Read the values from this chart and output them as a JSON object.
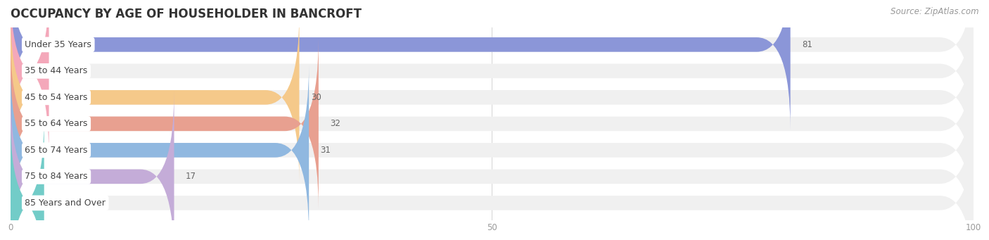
{
  "title": "OCCUPANCY BY AGE OF HOUSEHOLDER IN BANCROFT",
  "source": "Source: ZipAtlas.com",
  "categories": [
    "Under 35 Years",
    "35 to 44 Years",
    "45 to 54 Years",
    "55 to 64 Years",
    "65 to 74 Years",
    "75 to 84 Years",
    "85 Years and Over"
  ],
  "values": [
    81,
    4,
    30,
    32,
    31,
    17,
    0
  ],
  "bar_colors": [
    "#8b96d8",
    "#f4a8ba",
    "#f5c98a",
    "#e8a090",
    "#90b8e0",
    "#c4acd8",
    "#72ccc8"
  ],
  "bar_bg_color": "#f0f0f0",
  "xlim": [
    0,
    100
  ],
  "xticks": [
    0,
    50,
    100
  ],
  "title_fontsize": 12,
  "label_fontsize": 9,
  "value_fontsize": 8.5,
  "source_fontsize": 8.5,
  "bg_color": "#ffffff",
  "grid_color": "#d8d8d8",
  "bar_height": 0.55,
  "label_text_color": "#444444",
  "value_text_color": "#666666",
  "title_color": "#333333",
  "tick_color": "#999999"
}
